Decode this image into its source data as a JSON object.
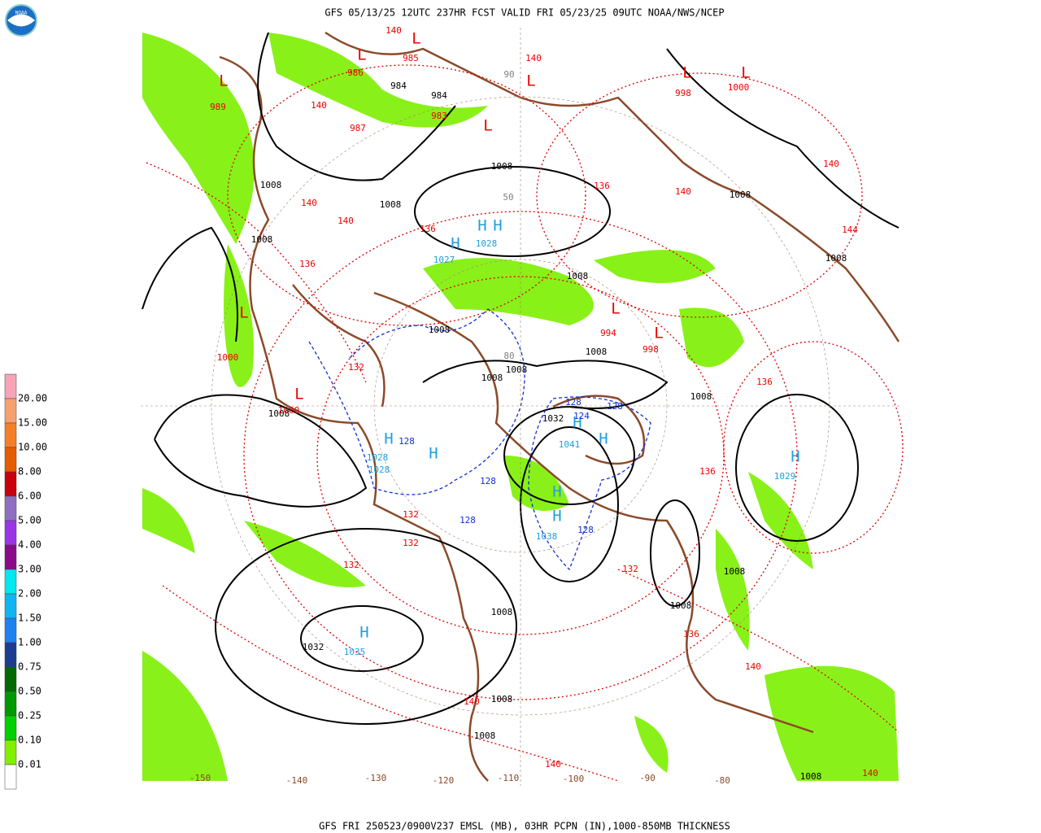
{
  "header": {
    "title": "GFS 05/13/25 12UTC 237HR FCST VALID FRI 05/23/25 09UTC NOAA/NWS/NCEP",
    "logo": "NOAA"
  },
  "legend": {
    "labels": [
      "20.00",
      "15.00",
      "10.00",
      "8.00",
      "6.00",
      "5.00",
      "4.00",
      "3.00",
      "2.00",
      "1.50",
      "1.00",
      "0.75",
      "0.50",
      "0.25",
      "0.10",
      "0.01"
    ],
    "colors": [
      "#f7a3b8",
      "#f5a070",
      "#f47f2a",
      "#e65c00",
      "#c8000c",
      "#8e6fc0",
      "#9a35e6",
      "#8a0a8a",
      "#00e8f0",
      "#12b4f0",
      "#2080f0",
      "#1c3c90",
      "#006a00",
      "#009a00",
      "#00d000",
      "#80f000",
      "#ffffff"
    ]
  },
  "map": {
    "label_groups": [
      {
        "color": "#ee0000",
        "labels": [
          "L",
          "L",
          "L",
          "L",
          "L",
          "L",
          "L",
          "L",
          "L",
          "L",
          "L"
        ]
      },
      {
        "color": "#1ea0e0",
        "labels": [
          "H",
          "H",
          "H",
          "H",
          "H",
          "H",
          "H",
          "H",
          "H",
          "H",
          "H"
        ]
      },
      {
        "color": "#000000",
        "labels": [
          "984",
          "984",
          "1008",
          "1008",
          "1008",
          "1008",
          "1008",
          "1008",
          "1008",
          "1008",
          "1008",
          "1008",
          "1008",
          "1008",
          "1032",
          "1032",
          "1008",
          "1008",
          "1008",
          "1008",
          "1008",
          "1008",
          "1008"
        ]
      },
      {
        "color": "#ee0000",
        "labels": [
          "985",
          "986",
          "989",
          "987",
          "983",
          "998",
          "1000",
          "994",
          "998",
          "1000",
          "1000"
        ]
      },
      {
        "color": "#ee0000",
        "labels": [
          "140",
          "140",
          "140",
          "140",
          "140",
          "140",
          "140",
          "144",
          "136",
          "136",
          "136",
          "136",
          "136",
          "136",
          "132",
          "132",
          "132",
          "132",
          "132",
          "140",
          "140",
          "140",
          "140"
        ]
      },
      {
        "color": "#1030d0",
        "labels": [
          "128",
          "124",
          "128",
          "128",
          "128",
          "128",
          "128"
        ]
      },
      {
        "color": "#1ea0e0",
        "labels": [
          "1028",
          "1027",
          "1028",
          "1028",
          "1029",
          "1035",
          "1038",
          "1041"
        ]
      },
      {
        "color": "#8b4a2a",
        "labels": [
          "-150",
          "-140",
          "-130",
          "-120",
          "-110",
          "-100",
          "-90",
          "-80"
        ]
      },
      {
        "color": "#808080",
        "labels": [
          "90",
          "50",
          "80"
        ]
      }
    ]
  },
  "footer": {
    "caption": "GFS FRI 250523/0900V237 EMSL (MB), 03HR PCPN (IN),1000-850MB THICKNESS"
  }
}
